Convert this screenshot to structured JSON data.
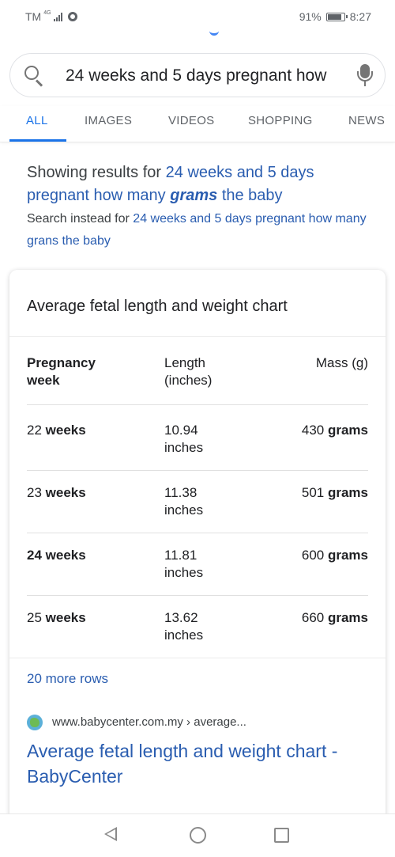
{
  "status_bar": {
    "carrier": "TM",
    "network": "4G",
    "battery_percent": "91%",
    "time": "8:27"
  },
  "search": {
    "query": "24 weeks and 5 days pregnant how",
    "icon": "search-icon",
    "mic_icon": "mic-icon"
  },
  "tabs": [
    "ALL",
    "IMAGES",
    "VIDEOS",
    "SHOPPING",
    "NEWS"
  ],
  "spelling": {
    "prefix": "Showing results for ",
    "corrected_pre": "24 weeks and 5 days pregnant how many ",
    "corrected_bold": "grams",
    "corrected_post": " the baby",
    "instead_prefix": "Search instead for ",
    "instead_link": "24 weeks and 5 days pregnant how many grans the baby"
  },
  "snippet": {
    "title": "Average fetal length and weight chart",
    "headers": {
      "week": "Pregnancy week",
      "length": "Length (inches)",
      "mass": "Mass (g)"
    },
    "rows": [
      {
        "num": "22",
        "week_unit": "weeks",
        "length": "10.94 inches",
        "mass": "430",
        "mass_unit": "grams"
      },
      {
        "num": "23",
        "week_unit": "weeks",
        "length": "11.38 inches",
        "mass": "501",
        "mass_unit": "grams"
      },
      {
        "num": "24",
        "week_unit": "weeks",
        "length": "11.81 inches",
        "mass": "600",
        "mass_unit": "grams"
      },
      {
        "num": "25",
        "week_unit": "weeks",
        "length": "13.62 inches",
        "mass": "660",
        "mass_unit": "grams"
      }
    ],
    "more_rows": "20 more rows"
  },
  "result": {
    "url": "www.babycenter.com.my › average...",
    "title": "Average fetal length and weight chart - BabyCenter"
  },
  "colors": {
    "accent": "#1a73e8",
    "link": "#2a5db0"
  }
}
